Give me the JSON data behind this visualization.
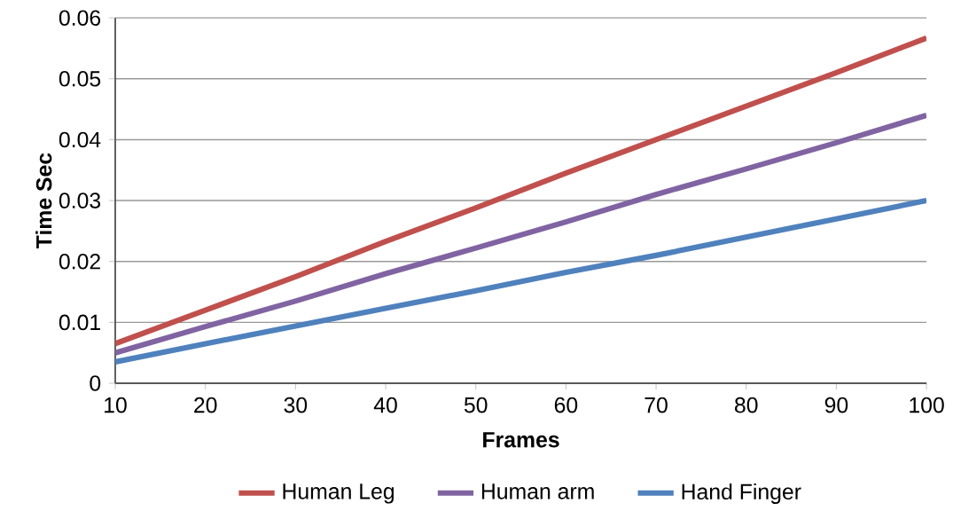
{
  "chart_data": {
    "type": "line",
    "xlabel": "Frames",
    "ylabel": "Time  Sec",
    "x": [
      10,
      20,
      30,
      40,
      50,
      60,
      70,
      80,
      90,
      100
    ],
    "series": [
      {
        "name": "Human Leg",
        "color": "#c0504d",
        "values": [
          0.0065,
          0.012,
          0.0175,
          0.0233,
          0.0288,
          0.0345,
          0.04,
          0.0455,
          0.051,
          0.0567
        ]
      },
      {
        "name": "Human arm",
        "color": "#8064a2",
        "values": [
          0.005,
          0.0093,
          0.0135,
          0.018,
          0.0222,
          0.0265,
          0.031,
          0.0352,
          0.0395,
          0.044
        ]
      },
      {
        "name": "Hand Finger",
        "color": "#4f81bd",
        "values": [
          0.0035,
          0.0065,
          0.0094,
          0.0123,
          0.0152,
          0.0182,
          0.021,
          0.024,
          0.027,
          0.03
        ]
      }
    ],
    "xlim": [
      10,
      100
    ],
    "xticks": [
      10,
      20,
      30,
      40,
      50,
      60,
      70,
      80,
      90,
      100
    ],
    "ylim": [
      0,
      0.06
    ],
    "yticks": [
      0,
      0.01,
      0.02,
      0.03,
      0.04,
      0.05,
      0.06
    ],
    "grid": "y",
    "legend": "bottom"
  }
}
